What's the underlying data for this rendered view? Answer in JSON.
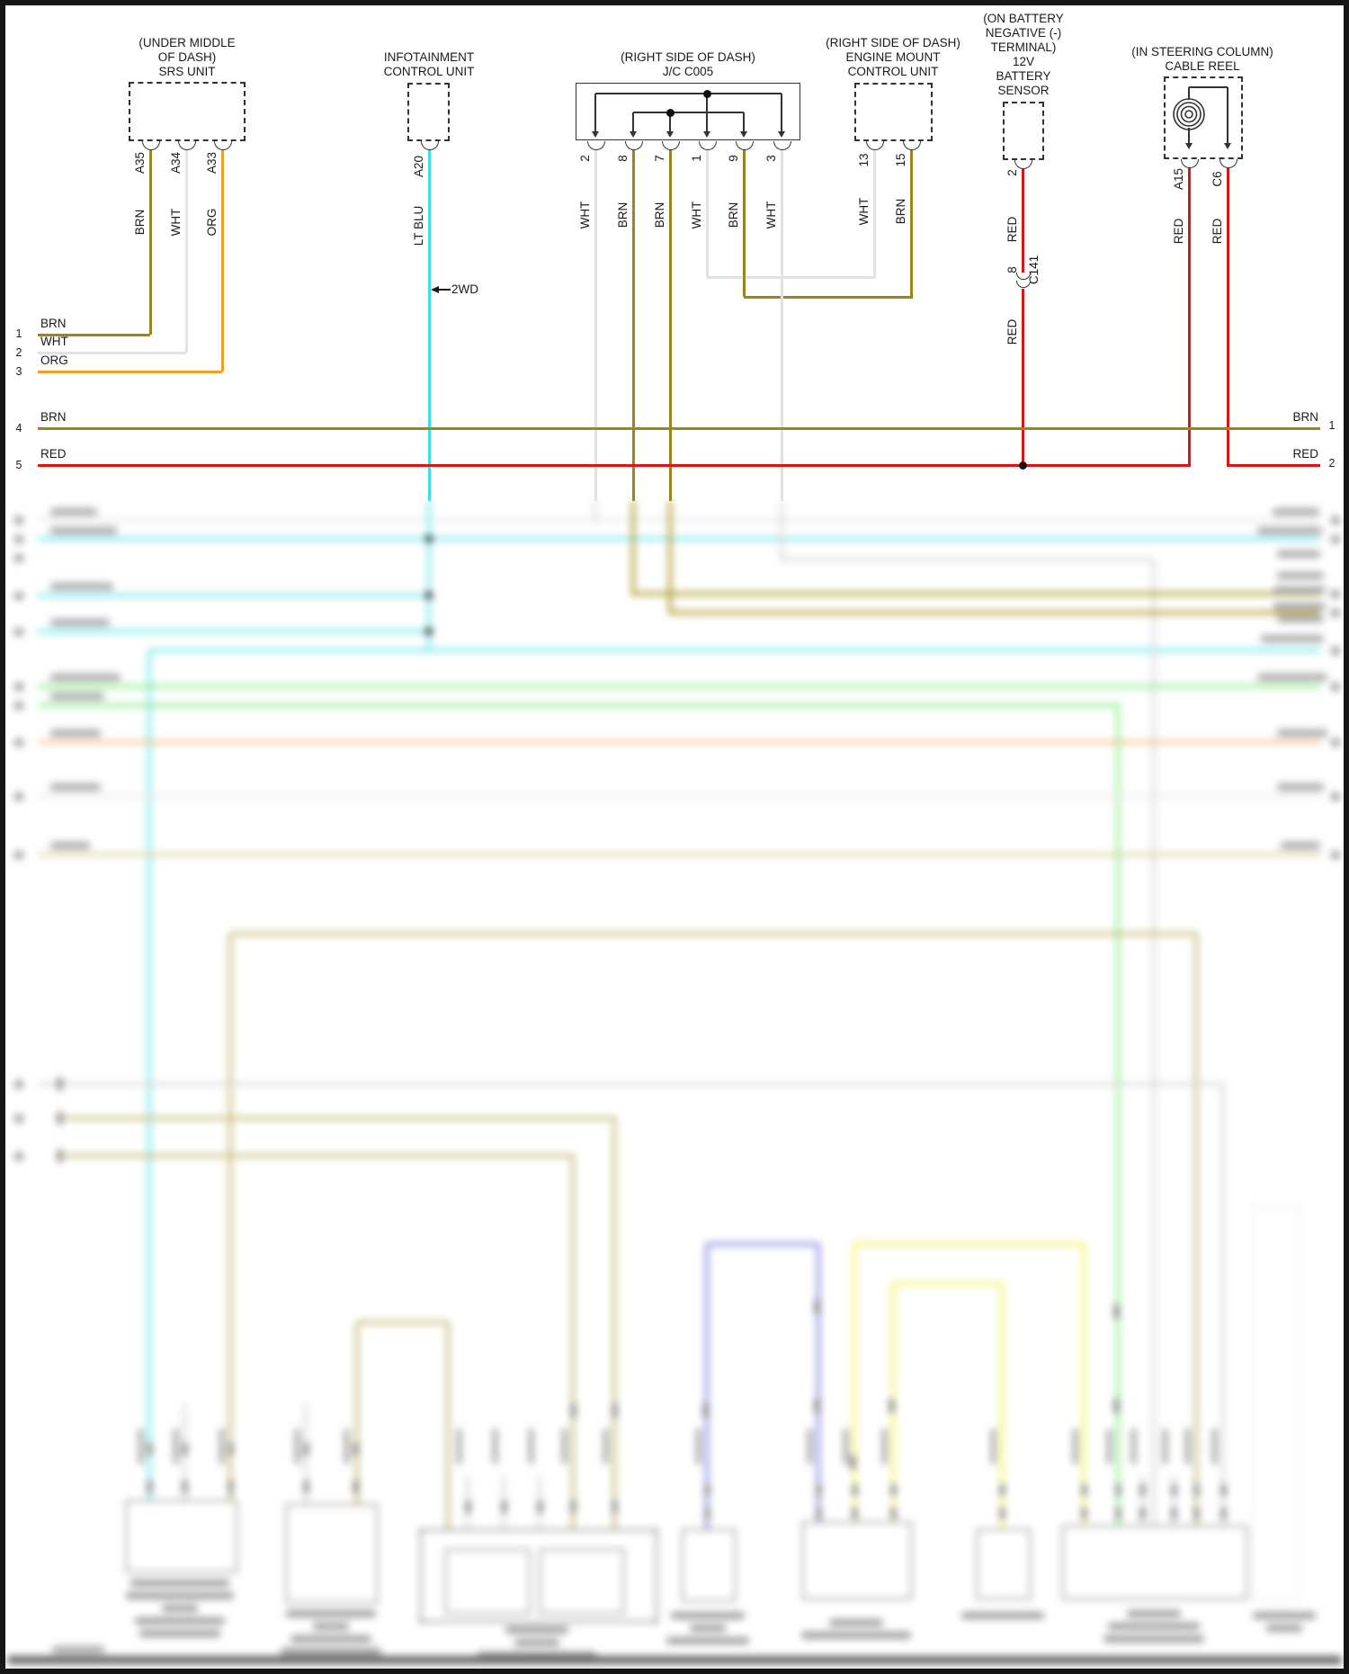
{
  "colors": {
    "BRN": "#9c851c",
    "WHT": "#e2e2e2",
    "ORG": "#ef9f26",
    "LT_BLU": "#3fdde6",
    "RED": "#dd1414",
    "LINE": "#333333",
    "BLUR_CYAN": "#7ae8ec",
    "BLUR_GREEN": "#92ee92",
    "BLUR_ORANGE": "#f6c48d",
    "BLUR_KHAKI": "#c9bd7e",
    "BLUR_KHAKI_PALE": "#ddd6a8",
    "BLUR_BRN": "#b29a2e",
    "BLUR_YELLOW": "#f5f170",
    "BLUR_BLUE": "#8a90e2",
    "BLUR_GRAY": "#dcdcdc",
    "BLUR_FAINT": "#ececec"
  },
  "components": {
    "srs_unit": {
      "title_lines": [
        "(UNDER MIDDLE",
        "OF DASH)",
        "SRS UNIT"
      ],
      "pins": [
        {
          "id": "A35",
          "wire": "BRN"
        },
        {
          "id": "A34",
          "wire": "WHT"
        },
        {
          "id": "A33",
          "wire": "ORG"
        }
      ]
    },
    "infotainment": {
      "title_lines": [
        "INFOTAINMENT",
        "CONTROL UNIT"
      ],
      "pins": [
        {
          "id": "A20",
          "wire": "LT BLU"
        }
      ],
      "drive_note": "2WD"
    },
    "jc_c005": {
      "title_lines": [
        "(RIGHT SIDE OF DASH)",
        "J/C C005"
      ],
      "pins": [
        {
          "id": "2",
          "wire": "WHT"
        },
        {
          "id": "8",
          "wire": "BRN"
        },
        {
          "id": "7",
          "wire": "BRN"
        },
        {
          "id": "1",
          "wire": "WHT"
        },
        {
          "id": "9",
          "wire": "BRN"
        },
        {
          "id": "3",
          "wire": "WHT"
        }
      ]
    },
    "engine_mount": {
      "title_lines": [
        "(RIGHT SIDE OF DASH)",
        "ENGINE MOUNT",
        "CONTROL UNIT"
      ],
      "pins": [
        {
          "id": "13",
          "wire": "WHT"
        },
        {
          "id": "15",
          "wire": "BRN"
        }
      ]
    },
    "battery_sensor": {
      "title_lines": [
        "(ON BATTERY",
        "NEGATIVE (-)",
        "TERMINAL)",
        "12V",
        "BATTERY",
        "SENSOR"
      ],
      "pins": [
        {
          "id": "2",
          "wire": "RED"
        }
      ],
      "inline_connector": {
        "pin": "8",
        "id": "C141",
        "wire_below": "RED"
      }
    },
    "cable_reel": {
      "title_lines": [
        "(IN STEERING COLUMN)",
        "CABLE REEL"
      ],
      "pins": [
        {
          "id": "A15",
          "wire": "RED"
        },
        {
          "id": "C6",
          "wire": "RED"
        }
      ]
    }
  },
  "left_rows": [
    {
      "num": "1",
      "label": "BRN"
    },
    {
      "num": "2",
      "label": "WHT"
    },
    {
      "num": "3",
      "label": "ORG"
    },
    {
      "num": "4",
      "label": "BRN"
    },
    {
      "num": "5",
      "label": "RED"
    }
  ],
  "right_rows": [
    {
      "label": "BRN",
      "num": "1"
    },
    {
      "label": "RED",
      "num": "2"
    }
  ]
}
